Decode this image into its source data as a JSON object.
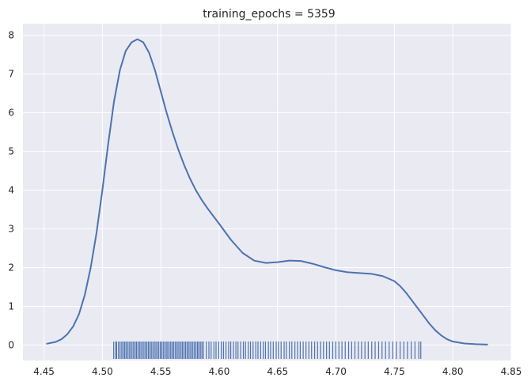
{
  "chart_data": {
    "type": "line",
    "title": "training_epochs = 5359",
    "xlabel": "",
    "ylabel": "",
    "xlim": [
      4.432,
      4.85
    ],
    "ylim": [
      -0.4,
      8.3
    ],
    "xticks": [
      4.45,
      4.5,
      4.55,
      4.6,
      4.65,
      4.7,
      4.75,
      4.8,
      4.85
    ],
    "xtick_labels": [
      "4.45",
      "4.50",
      "4.55",
      "4.60",
      "4.65",
      "4.70",
      "4.75",
      "4.80",
      "4.85"
    ],
    "yticks": [
      0,
      1,
      2,
      3,
      4,
      5,
      6,
      7,
      8
    ],
    "ytick_labels": [
      "0",
      "1",
      "2",
      "3",
      "4",
      "5",
      "6",
      "7",
      "8"
    ],
    "grid": true,
    "colors": {
      "background": "#eaeaf2",
      "grid": "#ffffff",
      "series": "#4c72b0",
      "text": "#262626"
    },
    "series": [
      {
        "kind": "kde",
        "x": [
          4.452,
          4.46,
          4.465,
          4.47,
          4.475,
          4.48,
          4.485,
          4.49,
          4.495,
          4.5,
          4.505,
          4.51,
          4.515,
          4.52,
          4.525,
          4.53,
          4.535,
          4.54,
          4.545,
          4.55,
          4.555,
          4.56,
          4.565,
          4.57,
          4.575,
          4.58,
          4.585,
          4.59,
          4.595,
          4.6,
          4.61,
          4.62,
          4.63,
          4.64,
          4.65,
          4.66,
          4.67,
          4.68,
          4.69,
          4.7,
          4.71,
          4.72,
          4.73,
          4.74,
          4.75,
          4.755,
          4.76,
          4.765,
          4.77,
          4.775,
          4.78,
          4.785,
          4.79,
          4.795,
          4.8,
          4.81,
          4.82,
          4.83
        ],
        "y": [
          0.03,
          0.08,
          0.15,
          0.28,
          0.48,
          0.8,
          1.3,
          2.0,
          2.9,
          4.0,
          5.2,
          6.3,
          7.1,
          7.6,
          7.82,
          7.9,
          7.82,
          7.55,
          7.1,
          6.55,
          6.0,
          5.5,
          5.05,
          4.65,
          4.3,
          4.0,
          3.75,
          3.53,
          3.33,
          3.13,
          2.72,
          2.38,
          2.18,
          2.12,
          2.14,
          2.18,
          2.17,
          2.1,
          2.01,
          1.93,
          1.88,
          1.86,
          1.84,
          1.78,
          1.65,
          1.52,
          1.35,
          1.15,
          0.95,
          0.75,
          0.55,
          0.38,
          0.25,
          0.15,
          0.09,
          0.04,
          0.02,
          0.01
        ]
      },
      {
        "kind": "rug",
        "x": [
          4.5097,
          4.5115,
          4.5122,
          4.5138,
          4.5152,
          4.5166,
          4.5178,
          4.5191,
          4.5203,
          4.5216,
          4.5229,
          4.5241,
          4.5254,
          4.5267,
          4.528,
          4.5292,
          4.5305,
          4.5318,
          4.533,
          4.5343,
          4.5356,
          4.5369,
          4.5381,
          4.5394,
          4.5407,
          4.5419,
          4.5432,
          4.5445,
          4.5458,
          4.547,
          4.5483,
          4.5496,
          4.5508,
          4.5521,
          4.5534,
          4.5547,
          4.5559,
          4.5572,
          4.5585,
          4.5597,
          4.561,
          4.5623,
          4.5636,
          4.5648,
          4.5661,
          4.5674,
          4.5686,
          4.5699,
          4.5712,
          4.5725,
          4.5737,
          4.575,
          4.5763,
          4.5775,
          4.5788,
          4.5801,
          4.5814,
          4.5826,
          4.5839,
          4.5852,
          4.5864,
          4.589,
          4.5912,
          4.5931,
          4.5955,
          4.5973,
          4.5996,
          4.6018,
          4.6037,
          4.6058,
          4.6081,
          4.6099,
          4.6122,
          4.6143,
          4.6161,
          4.6184,
          4.6207,
          4.6225,
          4.6249,
          4.6268,
          4.629,
          4.6313,
          4.6332,
          4.6355,
          4.6377,
          4.6396,
          4.6421,
          4.644,
          4.6463,
          4.6488,
          4.6507,
          4.653,
          4.6556,
          4.6575,
          4.6601,
          4.6622,
          4.6648,
          4.6671,
          4.6694,
          4.6719,
          4.6743,
          4.6768,
          4.6791,
          4.6817,
          4.6842,
          4.6868,
          4.6893,
          4.6919,
          4.6944,
          4.6972,
          4.6998,
          4.7025,
          4.7051,
          4.7079,
          4.7108,
          4.7134,
          4.7162,
          4.7191,
          4.7219,
          4.7248,
          4.7276,
          4.7306,
          4.7335,
          4.7365,
          4.7394,
          4.7424,
          4.7455,
          4.7486,
          4.7517,
          4.7549,
          4.7581,
          4.7612,
          4.7644,
          4.7676,
          4.7709,
          4.7726
        ]
      }
    ]
  }
}
